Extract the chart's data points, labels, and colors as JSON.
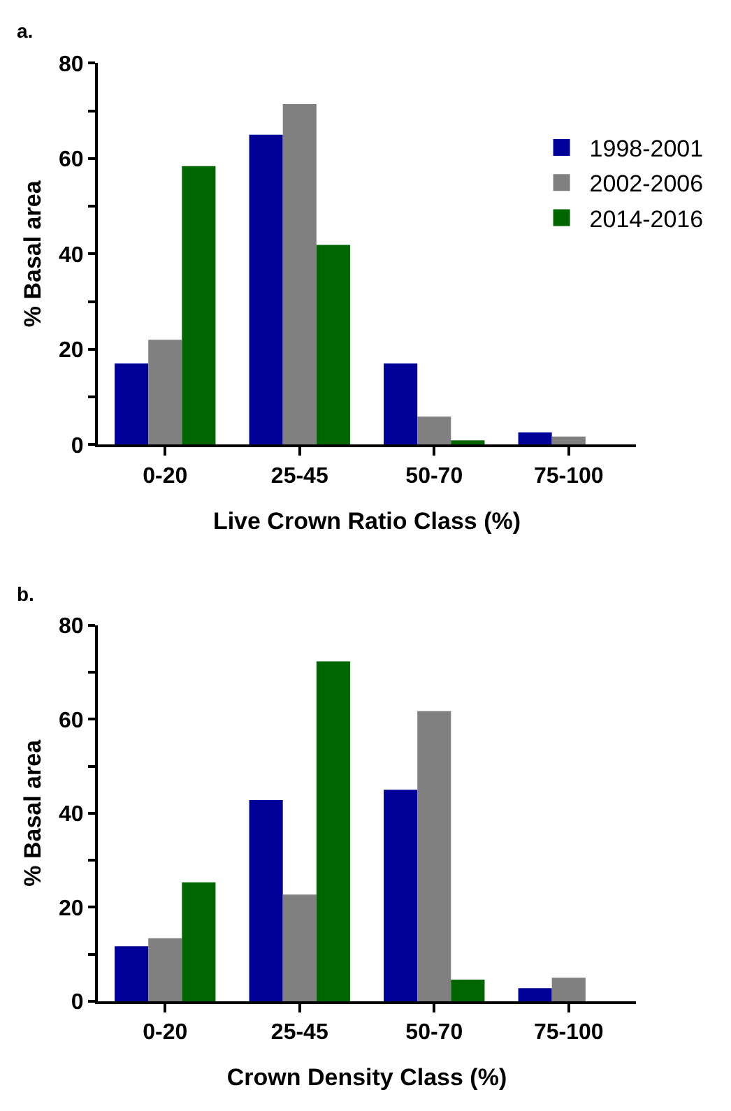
{
  "chart_data": [
    {
      "type": "bar",
      "annotations": [
        "a."
      ],
      "xlabel": "Live Crown Ratio Class (%)",
      "ylabel": "% Basal area",
      "categories": [
        "0-20",
        "25-45",
        "50-70",
        "75-100"
      ],
      "series": [
        {
          "name": "1998-2001",
          "color": "#000099",
          "values": [
            17,
            65,
            17,
            2.6
          ]
        },
        {
          "name": "2002-2006",
          "color": "#808080",
          "values": [
            22,
            71.4,
            5.9,
            1.7
          ]
        },
        {
          "name": "2014-2016",
          "color": "#006600",
          "values": [
            58.4,
            41.9,
            0.9,
            0
          ]
        }
      ],
      "ylim": [
        0,
        80
      ],
      "yticks": [
        0,
        {
          "value": 10,
          "label": null
        },
        20,
        {
          "value": 30,
          "label": null
        },
        40,
        {
          "value": 50,
          "label": null
        },
        60,
        {
          "value": 70,
          "label": null
        },
        80
      ],
      "legend": "top right"
    },
    {
      "type": "bar",
      "annotations": [
        "b."
      ],
      "xlabel": "Crown Density Class (%)",
      "ylabel": "% Basal area",
      "categories": [
        "0-20",
        "25-45",
        "50-70",
        "75-100"
      ],
      "series": [
        {
          "color": "#000099",
          "values": [
            11.7,
            42.8,
            45,
            2.8
          ]
        },
        {
          "color": "#808080",
          "values": [
            13.4,
            22.7,
            61.7,
            5
          ]
        },
        {
          "color": "#006600",
          "values": [
            25.3,
            72.3,
            4.6,
            0
          ]
        }
      ],
      "ylim": [
        0,
        80
      ],
      "yticks": [
        0,
        {
          "value": 10,
          "label": null
        },
        20,
        {
          "value": 30,
          "label": null
        },
        40,
        {
          "value": 50,
          "label": null
        },
        60,
        {
          "value": 70,
          "label": null
        },
        80
      ],
      "legend": false
    }
  ]
}
